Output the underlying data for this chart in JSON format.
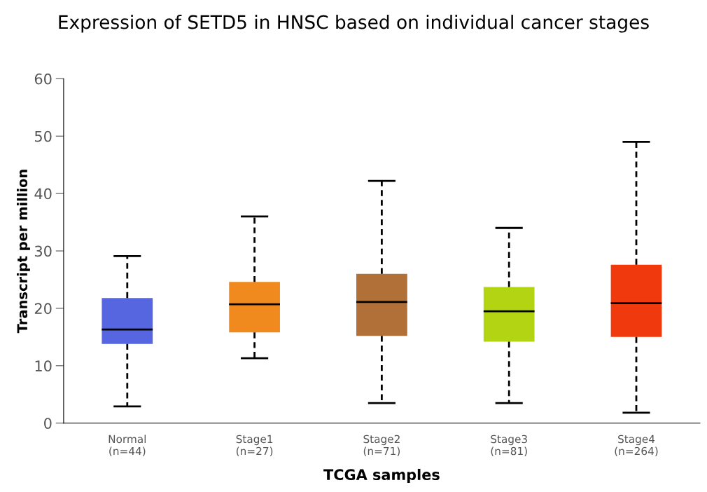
{
  "chart_data": {
    "type": "box",
    "title": "Expression of SETD5 in HNSC based on individual cancer stages",
    "xlabel": "TCGA samples",
    "ylabel": "Transcript per million",
    "categories": [
      "Normal\n(n=44)",
      "Stage1\n(n=27)",
      "Stage2\n(n=71)",
      "Stage3\n(n=81)",
      "Stage4\n(n=264)"
    ],
    "colors": [
      "#5566e0",
      "#f08a1e",
      "#b07038",
      "#b2d412",
      "#f03a0e"
    ],
    "boxes": [
      {
        "low": 2.9,
        "q1": 13.8,
        "median": 16.3,
        "q3": 21.8,
        "high": 29.1
      },
      {
        "low": 11.3,
        "q1": 15.8,
        "median": 20.7,
        "q3": 24.6,
        "high": 36.0
      },
      {
        "low": 3.5,
        "q1": 15.2,
        "median": 21.1,
        "q3": 26.0,
        "high": 42.2
      },
      {
        "low": 3.5,
        "q1": 14.2,
        "median": 19.5,
        "q3": 23.7,
        "high": 34.0
      },
      {
        "low": 1.8,
        "q1": 15.0,
        "median": 20.9,
        "q3": 27.6,
        "high": 49.0
      }
    ],
    "ylim": [
      0,
      60
    ],
    "yticks": [
      0,
      10,
      20,
      30,
      40,
      50,
      60
    ],
    "grid": false
  }
}
